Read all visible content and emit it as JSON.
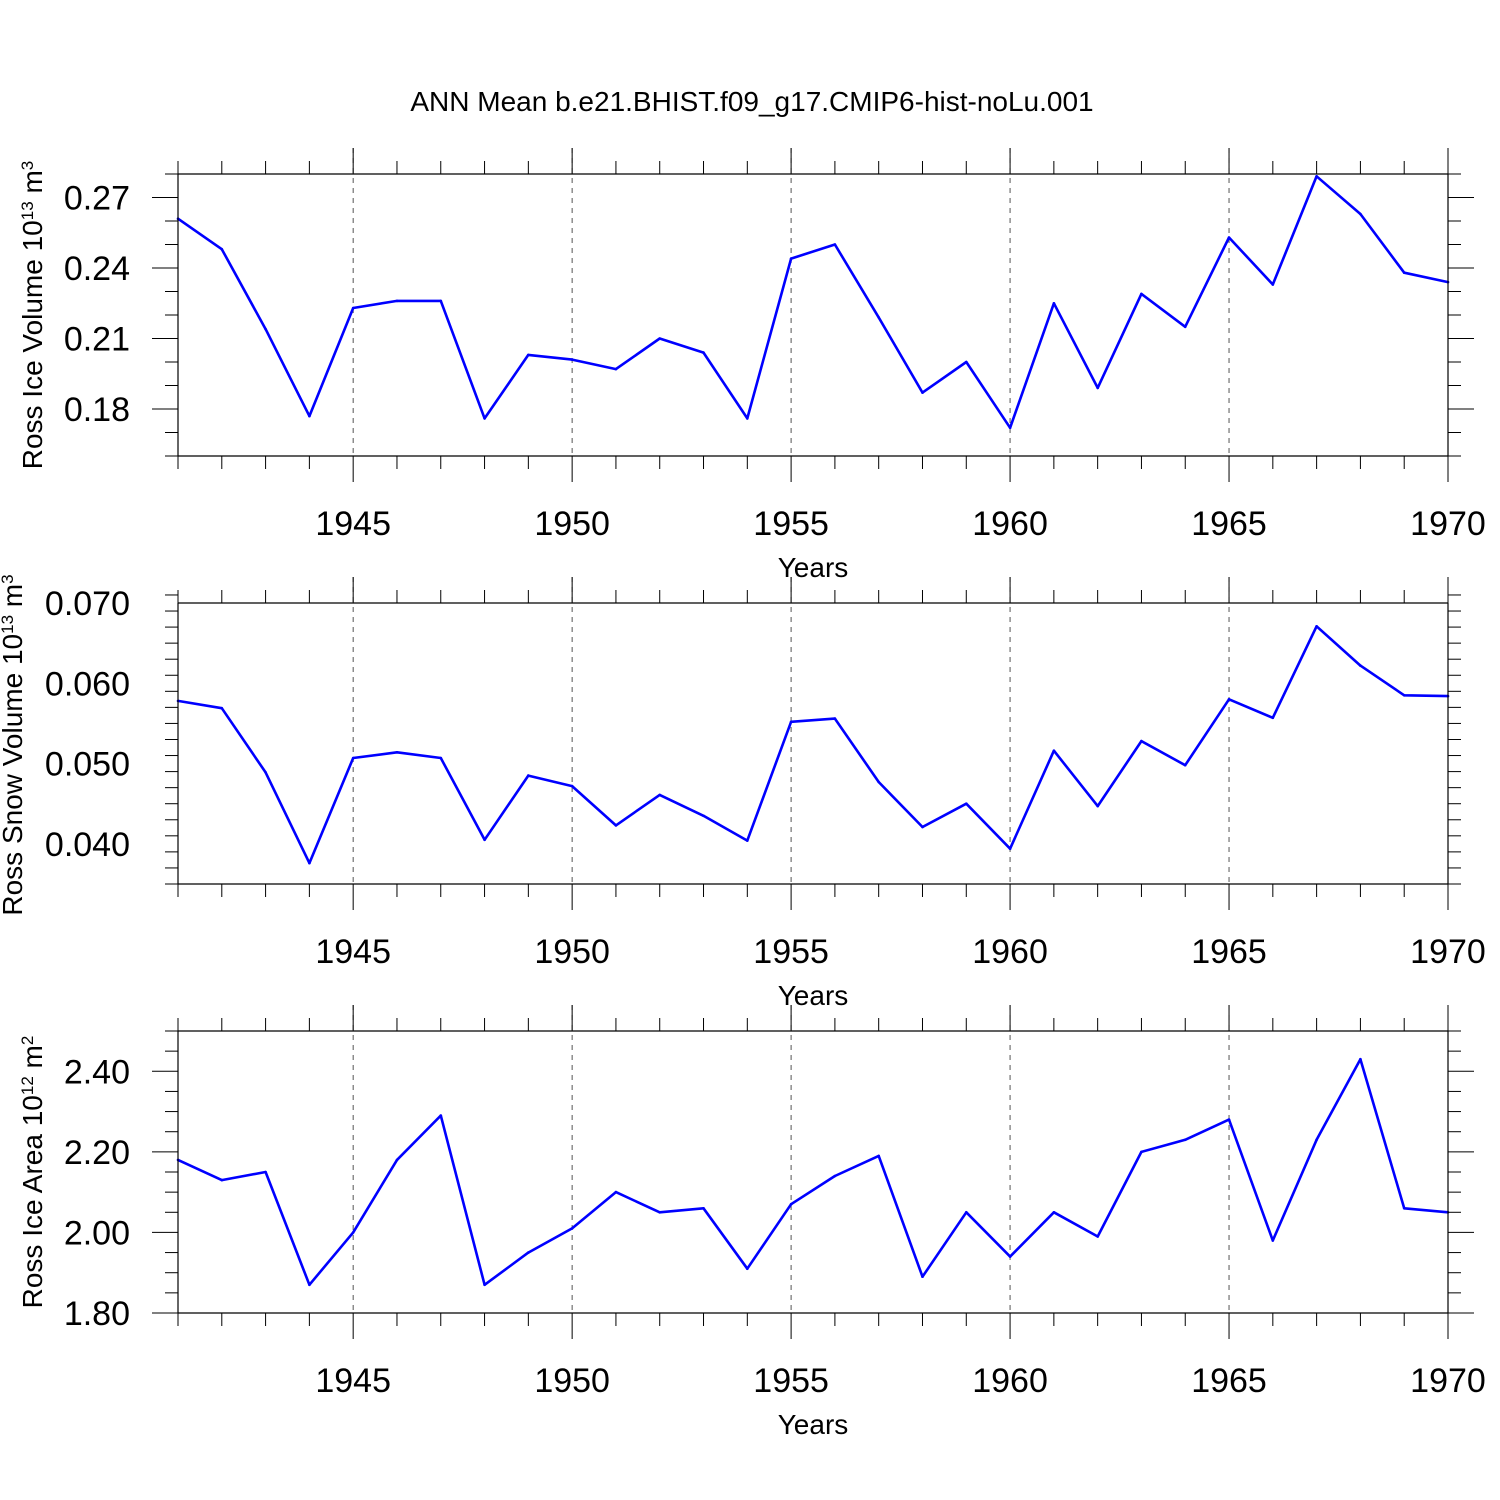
{
  "title": "ANN Mean b.e21.BHIST.f09_g17.CMIP6-hist-noLu.001",
  "colors": {
    "line": "#0000ff",
    "axis": "#000000",
    "grid": "#555555"
  },
  "chart_data": [
    {
      "type": "line",
      "ylabel": {
        "base": "Ross Ice Volume 10",
        "exp": "13",
        "unit": " m",
        "unit_exp": "3"
      },
      "xlabel": "Years",
      "xlim": [
        1941,
        1970
      ],
      "ylim": [
        0.16,
        0.28
      ],
      "y_major_ticks": [
        "0.18",
        "0.21",
        "0.24",
        "0.27"
      ],
      "y_minor_step": 0.01,
      "x_major_ticks": [
        "1945",
        "1950",
        "1955",
        "1960",
        "1965",
        "1970"
      ],
      "grid": "vertical dashed at major x ticks",
      "series": [
        {
          "name": "Ross Ice Volume",
          "x": [
            1941,
            1942,
            1943,
            1944,
            1945,
            1946,
            1947,
            1948,
            1949,
            1950,
            1951,
            1952,
            1953,
            1954,
            1955,
            1956,
            1957,
            1958,
            1959,
            1960,
            1961,
            1962,
            1963,
            1964,
            1965,
            1966,
            1967,
            1968,
            1969,
            1970
          ],
          "values": [
            0.261,
            0.248,
            0.214,
            0.177,
            0.223,
            0.226,
            0.226,
            0.176,
            0.203,
            0.201,
            0.197,
            0.21,
            0.204,
            0.176,
            0.244,
            0.25,
            0.219,
            0.187,
            0.2,
            0.172,
            0.225,
            0.189,
            0.229,
            0.215,
            0.253,
            0.233,
            0.279,
            0.263,
            0.238,
            0.234
          ]
        }
      ]
    },
    {
      "type": "line",
      "ylabel": {
        "base": "Ross Snow Volume 10",
        "exp": "13",
        "unit": " m",
        "unit_exp": "3"
      },
      "xlabel": "Years",
      "xlim": [
        1941,
        1970
      ],
      "ylim": [
        0.035,
        0.07
      ],
      "y_major_ticks": [
        "0.040",
        "0.050",
        "0.060",
        "0.070"
      ],
      "y_minor_step": 0.002,
      "x_major_ticks": [
        "1945",
        "1950",
        "1955",
        "1960",
        "1965",
        "1970"
      ],
      "grid": "vertical dashed at major x ticks",
      "series": [
        {
          "name": "Ross Snow Volume",
          "x": [
            1941,
            1942,
            1943,
            1944,
            1945,
            1946,
            1947,
            1948,
            1949,
            1950,
            1951,
            1952,
            1953,
            1954,
            1955,
            1956,
            1957,
            1958,
            1959,
            1960,
            1961,
            1962,
            1963,
            1964,
            1965,
            1966,
            1967,
            1968,
            1969,
            1970
          ],
          "values": [
            0.0578,
            0.0569,
            0.0489,
            0.0376,
            0.0507,
            0.0514,
            0.0507,
            0.0405,
            0.0485,
            0.0472,
            0.0423,
            0.0461,
            0.0435,
            0.0404,
            0.0552,
            0.0556,
            0.0477,
            0.0421,
            0.045,
            0.0394,
            0.0516,
            0.0447,
            0.0528,
            0.0498,
            0.058,
            0.0557,
            0.0671,
            0.0622,
            0.0585,
            0.0584
          ]
        }
      ]
    },
    {
      "type": "line",
      "ylabel": {
        "base": "Ross Ice Area 10",
        "exp": "12",
        "unit": " m",
        "unit_exp": "2"
      },
      "xlabel": "Years",
      "xlim": [
        1941,
        1970
      ],
      "ylim": [
        1.8,
        2.5
      ],
      "y_major_ticks": [
        "1.80",
        "2.00",
        "2.20",
        "2.40"
      ],
      "y_minor_step": 0.05,
      "x_major_ticks": [
        "1945",
        "1950",
        "1955",
        "1960",
        "1965",
        "1970"
      ],
      "grid": "vertical dashed at major x ticks",
      "series": [
        {
          "name": "Ross Ice Area",
          "x": [
            1941,
            1942,
            1943,
            1944,
            1945,
            1946,
            1947,
            1948,
            1949,
            1950,
            1951,
            1952,
            1953,
            1954,
            1955,
            1956,
            1957,
            1958,
            1959,
            1960,
            1961,
            1962,
            1963,
            1964,
            1965,
            1966,
            1967,
            1968,
            1969,
            1970
          ],
          "values": [
            2.18,
            2.13,
            2.15,
            1.87,
            2.0,
            2.18,
            2.29,
            1.87,
            1.95,
            2.01,
            2.1,
            2.05,
            2.06,
            1.91,
            2.07,
            2.14,
            2.19,
            1.89,
            2.05,
            1.94,
            2.05,
            1.99,
            2.2,
            2.23,
            2.28,
            1.98,
            2.23,
            2.43,
            2.06,
            2.05
          ]
        }
      ]
    }
  ]
}
